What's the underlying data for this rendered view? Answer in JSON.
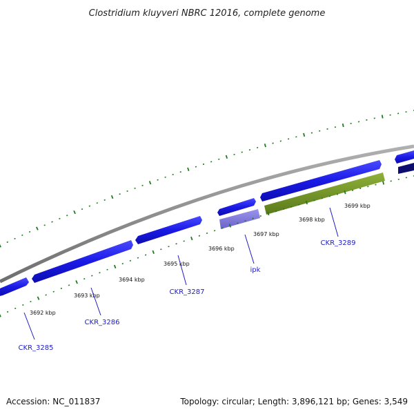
{
  "title": "Clostridium kluyveri NBRC 12016, complete genome",
  "footer": {
    "accession": "Accession: NC_011837",
    "summary": "Topology: circular; Length: 3,896,121 bp; Genes: 3,549"
  },
  "colors": {
    "backbone": "#8c8c8c",
    "ticks": "#1f7a1f",
    "gene_forward": "#1a1ae6",
    "gene_highlight": "#7b74d6",
    "gene_pseudo": "#6b8e23",
    "gene_dark": "#0d0d70",
    "label": "#1a1ac8"
  },
  "ticks": {
    "labels": [
      "3692 kbp",
      "3693 kbp",
      "3694 kbp",
      "3695 kbp",
      "3696 kbp",
      "3697 kbp",
      "3698 kbp",
      "3699 kbp"
    ]
  },
  "genes": {
    "labels": [
      "CKR_3285",
      "CKR_3286",
      "CKR_3287",
      "ipk",
      "CKR_3289"
    ]
  }
}
